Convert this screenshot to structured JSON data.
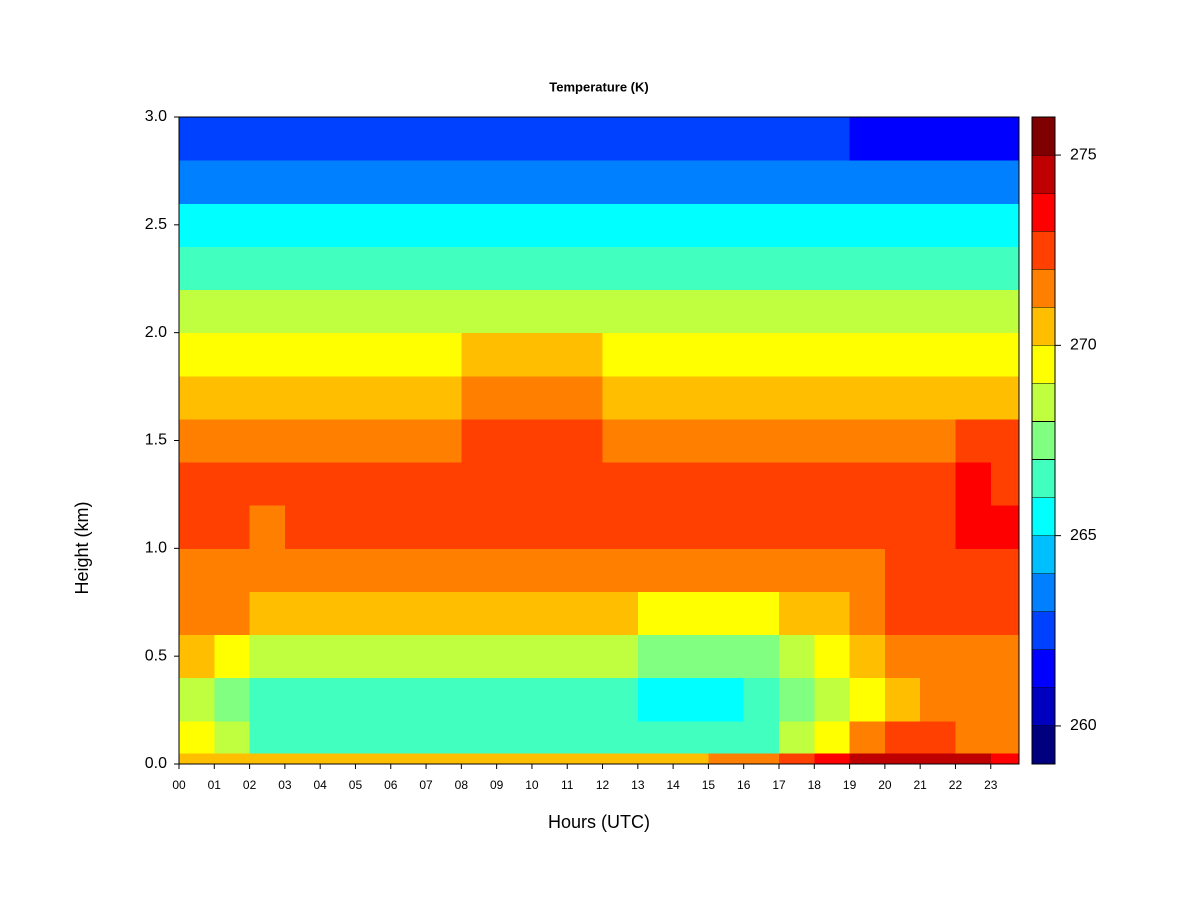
{
  "chart_data": {
    "type": "heatmap",
    "title": "Temperature (K)",
    "xlabel": "Hours (UTC)",
    "ylabel": "Height (km)",
    "xlim": [
      0,
      23.8
    ],
    "ylim": [
      0,
      3
    ],
    "xticks": [
      {
        "value": 0,
        "label": "00"
      },
      {
        "value": 1,
        "label": "01"
      },
      {
        "value": 2,
        "label": "02"
      },
      {
        "value": 3,
        "label": "03"
      },
      {
        "value": 4,
        "label": "04"
      },
      {
        "value": 5,
        "label": "05"
      },
      {
        "value": 6,
        "label": "06"
      },
      {
        "value": 7,
        "label": "07"
      },
      {
        "value": 8,
        "label": "08"
      },
      {
        "value": 9,
        "label": "09"
      },
      10,
      11,
      12,
      13,
      14,
      15,
      16,
      17,
      18,
      19,
      20,
      21,
      22,
      23
    ],
    "yticks": [
      {
        "value": 0,
        "label": "0.0"
      },
      {
        "value": 0.5,
        "label": "0.5"
      },
      {
        "value": 1,
        "label": "1.0"
      },
      {
        "value": 1.5,
        "label": "1.5"
      },
      {
        "value": 2,
        "label": "2.0"
      },
      {
        "value": 2.5,
        "label": "2.5"
      },
      {
        "value": 3,
        "label": "3.0"
      }
    ],
    "x_bins": [
      0,
      1,
      2,
      3,
      4,
      5,
      6,
      7,
      8,
      9,
      10,
      11,
      12,
      13,
      14,
      15,
      16,
      17,
      18,
      19,
      20,
      21,
      22,
      23,
      23.8
    ],
    "y_bins": [
      0,
      0.05,
      0.2,
      0.4,
      0.6,
      0.8,
      1.0,
      1.2,
      1.4,
      1.6,
      1.8,
      2.0,
      2.2,
      2.4,
      2.6,
      2.8,
      3.0
    ],
    "values": [
      [
        270.5,
        270.5,
        270,
        270,
        270,
        270,
        270,
        270,
        270,
        270,
        270,
        270,
        270,
        270,
        270.5,
        271,
        271.5,
        272,
        273,
        274,
        274.5,
        274.5,
        274,
        273.5
      ],
      [
        269,
        268.5,
        266.5,
        266,
        266,
        266,
        266,
        266,
        266,
        266,
        266,
        266,
        266,
        266,
        266,
        266,
        266.5,
        268,
        269,
        271,
        272,
        272,
        271.5,
        271.5
      ],
      [
        268,
        267.5,
        266.5,
        266.5,
        266.5,
        266.5,
        266,
        266,
        266,
        266,
        266,
        266,
        266,
        265.5,
        265.5,
        265.5,
        266,
        267,
        268,
        269,
        270,
        271,
        271,
        271
      ],
      [
        270,
        269.5,
        268,
        268,
        268,
        268,
        268,
        268,
        268.5,
        268.5,
        268.5,
        268.5,
        268,
        267,
        267,
        267,
        267.5,
        268,
        269,
        270,
        271,
        271.5,
        271.5,
        271.5
      ],
      [
        271,
        271,
        270,
        270,
        270,
        270,
        270,
        270.5,
        270.5,
        270.5,
        270.5,
        270.5,
        270,
        269.5,
        269.5,
        269.5,
        269.5,
        270,
        270.5,
        271,
        272,
        272,
        272,
        272
      ],
      [
        271.5,
        271.5,
        271,
        271,
        271,
        271,
        271,
        271,
        271.5,
        271.5,
        271.5,
        271.5,
        271,
        271,
        271,
        271,
        271,
        271,
        271,
        271.5,
        272,
        272,
        272.5,
        272.5
      ],
      [
        272,
        272,
        271.5,
        272,
        272,
        272,
        272,
        272,
        272.5,
        272.5,
        272.5,
        272.5,
        272,
        272,
        272,
        272,
        272,
        272,
        272,
        272,
        272,
        272.5,
        273,
        273
      ],
      [
        272,
        272,
        272,
        272,
        272,
        272,
        272,
        272,
        272.5,
        272.5,
        272.5,
        272.5,
        272,
        272,
        272,
        272,
        272,
        272,
        272,
        272,
        272,
        272.5,
        273,
        272.5
      ],
      [
        271.5,
        271.5,
        271.5,
        271.5,
        271.5,
        271.5,
        271.5,
        271.5,
        272,
        272,
        272,
        272,
        271.5,
        271.5,
        271.5,
        271.5,
        271.5,
        271.5,
        271.5,
        271.5,
        271.5,
        271.5,
        272,
        272
      ],
      [
        270.5,
        270.5,
        270.5,
        270.5,
        270.5,
        270.5,
        270.5,
        270.5,
        271,
        271,
        271,
        271,
        270.5,
        270.5,
        270.5,
        270.5,
        270.5,
        270.5,
        270.5,
        270.5,
        270.5,
        270.5,
        270.5,
        270.5
      ],
      [
        269.5,
        269.5,
        269.5,
        269.5,
        269.5,
        269.5,
        269.5,
        269.5,
        270,
        270,
        270,
        270,
        269.5,
        269.5,
        269.5,
        269.5,
        269.5,
        269.5,
        269.5,
        269.5,
        269.5,
        269.5,
        269.5,
        269.5
      ],
      [
        268,
        268,
        268,
        268,
        268,
        268,
        268,
        268,
        268.5,
        268.5,
        268.5,
        268.5,
        268,
        268,
        268,
        268,
        268,
        268,
        268,
        268,
        268,
        268,
        268,
        268
      ],
      [
        266.5,
        266.5,
        266.5,
        266.5,
        266.5,
        266.5,
        266.5,
        266.5,
        266.5,
        266.5,
        266.5,
        266.5,
        266.5,
        266.5,
        266.5,
        266.5,
        266.5,
        266.5,
        266.5,
        266.5,
        266.5,
        266.5,
        266.5,
        266.5
      ],
      [
        265.2,
        265.2,
        265.2,
        265.2,
        265.2,
        265.2,
        265.2,
        265.2,
        265.2,
        265.2,
        265.2,
        265.2,
        265.2,
        265.2,
        265.2,
        265.2,
        265.2,
        265.2,
        265.2,
        265.2,
        265.2,
        265.2,
        265.2,
        265.2
      ],
      [
        263.8,
        263.8,
        263.8,
        263.8,
        263.8,
        263.8,
        263.8,
        263.8,
        263.8,
        263.8,
        263.8,
        263.8,
        263.8,
        263.8,
        263.8,
        263.8,
        263.8,
        263.8,
        263.8,
        263.8,
        263.8,
        263.8,
        263.8,
        263.8
      ],
      [
        262,
        262,
        262,
        262,
        262,
        262,
        262,
        262,
        262,
        262,
        262,
        262,
        262,
        262,
        262,
        262,
        262,
        262,
        262,
        261.5,
        261.5,
        261.5,
        261.5,
        261.5
      ]
    ],
    "colorbar": {
      "levels": [
        259,
        260,
        261,
        262,
        263,
        264,
        265,
        266,
        267,
        268,
        269,
        270,
        271,
        272,
        273,
        274,
        275,
        276
      ],
      "colors": [
        "#00007f",
        "#0000bf",
        "#0000ff",
        "#0040ff",
        "#0080ff",
        "#00bfff",
        "#00ffff",
        "#40ffbf",
        "#80ff80",
        "#bfff40",
        "#ffff00",
        "#ffbf00",
        "#ff8000",
        "#ff4000",
        "#ff0000",
        "#bf0000",
        "#7f0000"
      ],
      "ticks": [
        260,
        265,
        270,
        275
      ]
    }
  }
}
